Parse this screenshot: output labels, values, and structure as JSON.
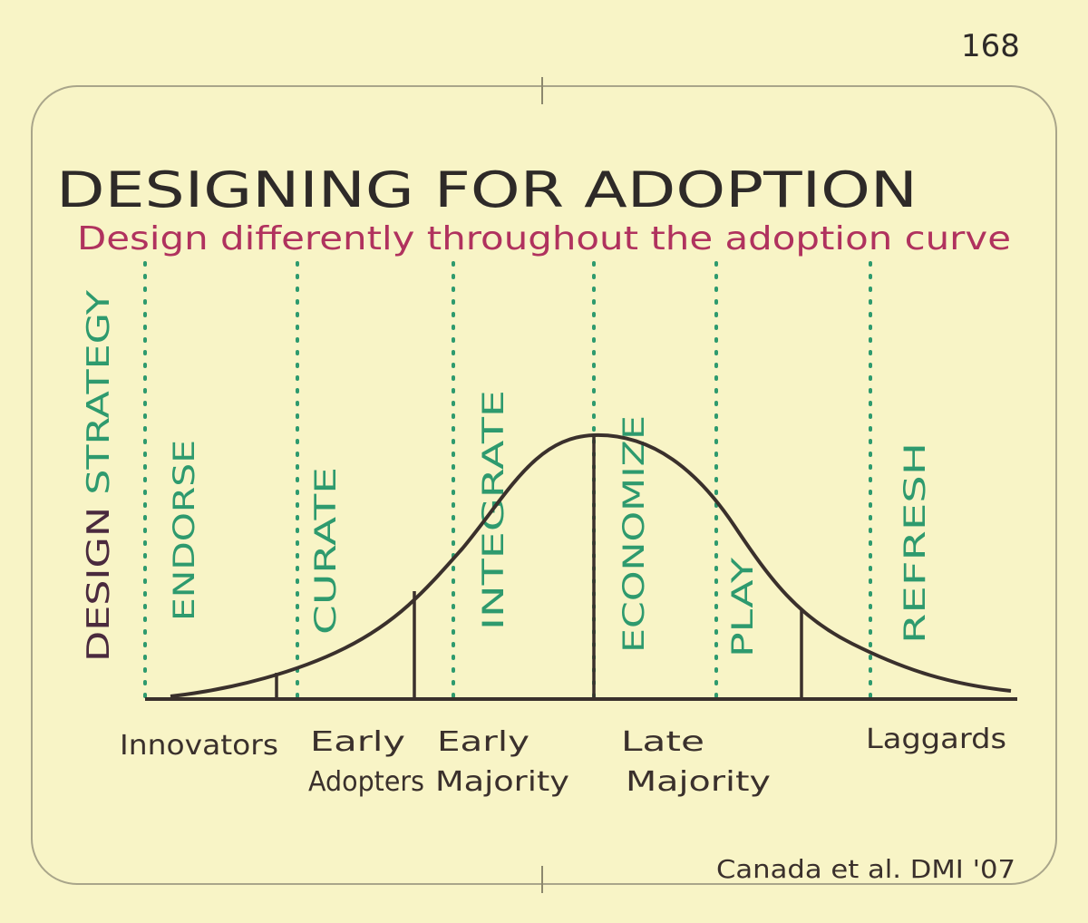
{
  "page_number": "168",
  "title": "DESIGNING FOR ADOPTION",
  "subtitle": "Design differently throughout the adoption curve",
  "y_axis_label": {
    "part1": "DESIGN",
    "part2": "STRATEGY"
  },
  "strategies": [
    "ENDORSE",
    "CURATE",
    "INTEGRATE",
    "ECONOMIZE",
    "PLAY",
    "REFRESH"
  ],
  "segments": [
    {
      "line1": "Innovators",
      "line2": ""
    },
    {
      "line1": "Early",
      "line2": "Adopters"
    },
    {
      "line1": "Early",
      "line2": "Majority"
    },
    {
      "line1": "Late",
      "line2": "Majority"
    },
    {
      "line1": "Laggards",
      "line2": ""
    }
  ],
  "credit": "Canada et al. DMI '07",
  "colors": {
    "background": "#f8f4c6",
    "ink": "#3a302c",
    "title": "#2e2a28",
    "subtitle": "#b0325e",
    "strategy": "#2e9a6e",
    "design_label": "#4a2a3e"
  }
}
